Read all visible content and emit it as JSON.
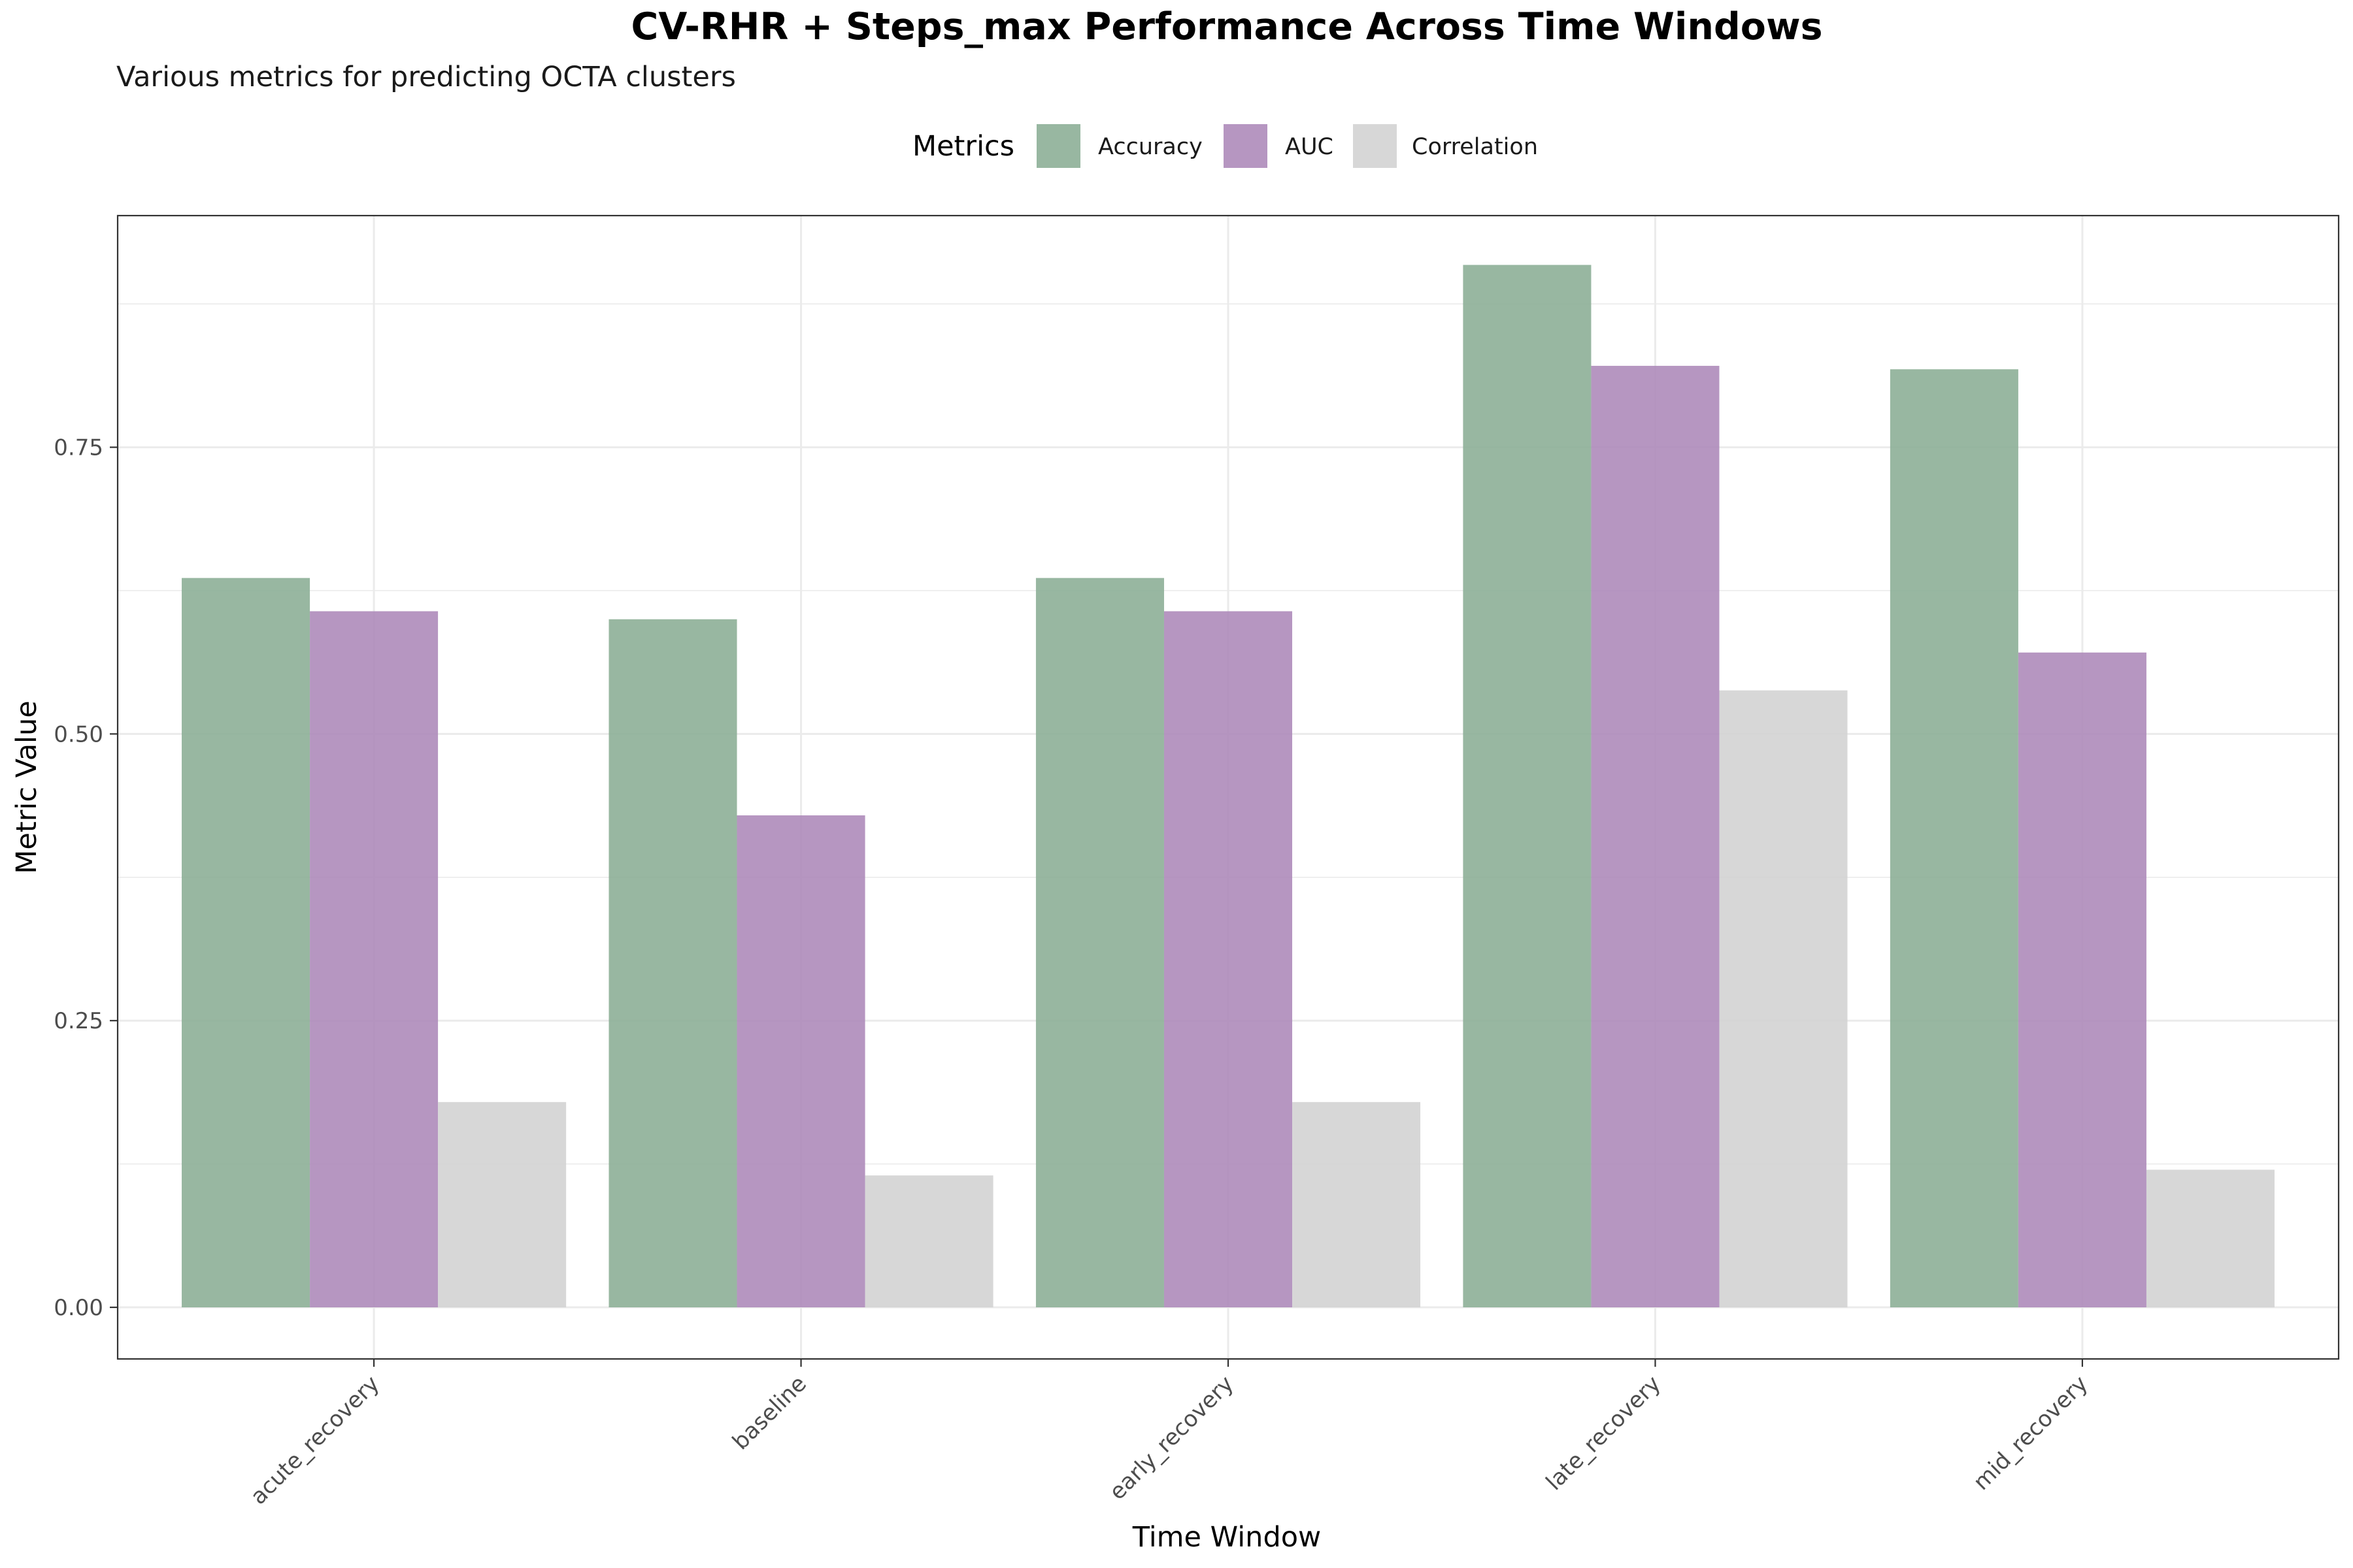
{
  "chart_data": {
    "type": "bar",
    "title": "CV-RHR + Steps_max Performance Across Time Windows",
    "subtitle": "Various metrics for predicting OCTA clusters",
    "xlabel": "Time Window",
    "ylabel": "Metric Value",
    "legend_title": "Metrics",
    "legend_position": "top",
    "grid": true,
    "categories": [
      "acute_recovery",
      "baseline",
      "early_recovery",
      "late_recovery",
      "mid_recovery"
    ],
    "series": [
      {
        "name": "Accuracy",
        "color": "#8DAF97",
        "values": [
          0.636,
          0.6,
          0.636,
          0.909,
          0.818
        ]
      },
      {
        "name": "AUC",
        "color": "#AE8BBA",
        "values": [
          0.607,
          0.429,
          0.607,
          0.821,
          0.571
        ]
      },
      {
        "name": "Correlation",
        "color": "#D3D3D3",
        "values": [
          0.179,
          0.115,
          0.179,
          0.538,
          0.12
        ]
      }
    ],
    "ylim": [
      -0.045,
      0.952
    ],
    "yticks": [
      0,
      0.25,
      0.5,
      0.75
    ],
    "ytick_labels": [
      "0.00",
      "0.25",
      "0.50",
      "0.75"
    ]
  }
}
